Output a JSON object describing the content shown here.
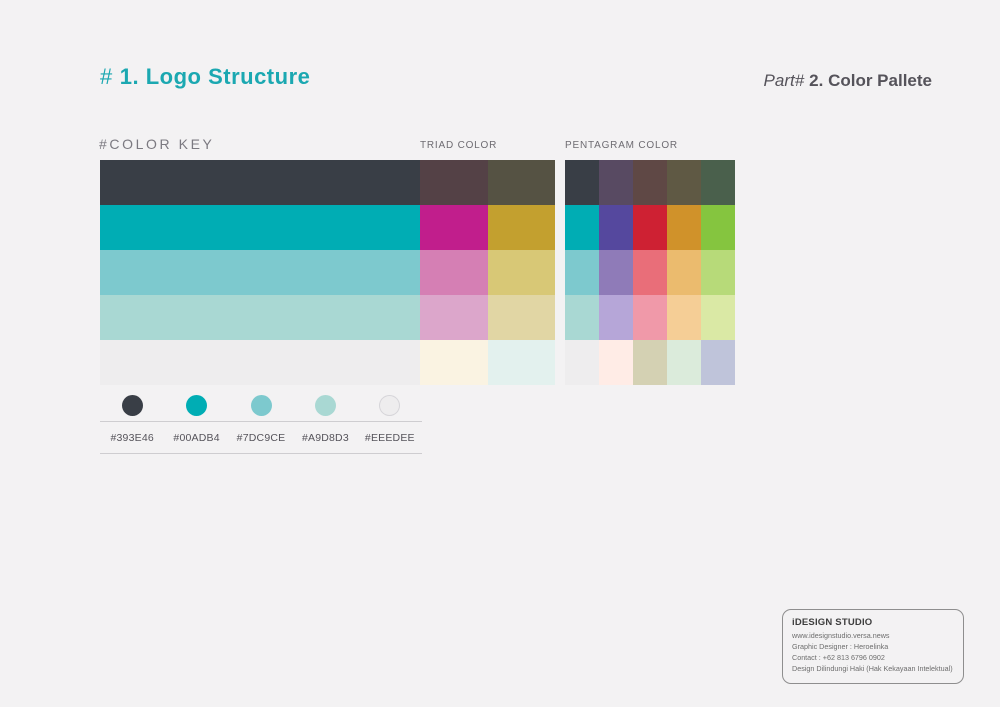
{
  "header": {
    "title_hash": "#",
    "title": "1. Logo Structure",
    "title_color": "#1BA8B1",
    "part_prefix": "Part#",
    "part_title": "2. Color Pallete"
  },
  "labels": {
    "color_key": "#COLOR KEY",
    "triad": "TRIAD COLOR",
    "pentagram": "PENTAGRAM COLOR"
  },
  "grids": {
    "key_triad": {
      "columns": [
        "color-key",
        "triad-1",
        "triad-2"
      ],
      "rows": [
        [
          "#393E46",
          "#544146",
          "#555243"
        ],
        [
          "#00ADB4",
          "#C11E8C",
          "#C3A02F"
        ],
        [
          "#7DC9CE",
          "#D57FB4",
          "#D8C876"
        ],
        [
          "#A9D8D3",
          "#DCA6CB",
          "#E1D6A4"
        ],
        [
          "#EEEDEE",
          "#FAF3E2",
          "#E3F1EE"
        ]
      ]
    },
    "pentagram": {
      "rows": [
        [
          "#393E46",
          "#584A62",
          "#5F4845",
          "#5F5944",
          "#4A604C"
        ],
        [
          "#00ADB4",
          "#55489E",
          "#CE2133",
          "#D0922A",
          "#85C53F"
        ],
        [
          "#7DC9CE",
          "#8F7BB8",
          "#E96E79",
          "#EBBB6E",
          "#B7DA79"
        ],
        [
          "#A9D8D3",
          "#B6A6D8",
          "#F099A9",
          "#F5CE96",
          "#DAE9A5"
        ],
        [
          "#EEEDEE",
          "#FFECE6",
          "#D4D1B3",
          "#DBEBDB",
          "#BFC4DA"
        ]
      ]
    }
  },
  "palette": {
    "swatches": [
      {
        "hex": "#393E46",
        "bordered": false
      },
      {
        "hex": "#00ADB4",
        "bordered": false
      },
      {
        "hex": "#7DC9CE",
        "bordered": false
      },
      {
        "hex": "#A9D8D3",
        "bordered": false
      },
      {
        "hex": "#EEEDEE",
        "bordered": true
      }
    ]
  },
  "info_box": {
    "title": "iDESIGN STUDIO",
    "lines": [
      "www.idesignstudio.versa.news",
      "Graphic Designer : Heroelinka",
      "Contact : +62 813 6796 0902",
      "Design Dilindungi Haki (Hak Kekayaan Intelektual)"
    ]
  }
}
